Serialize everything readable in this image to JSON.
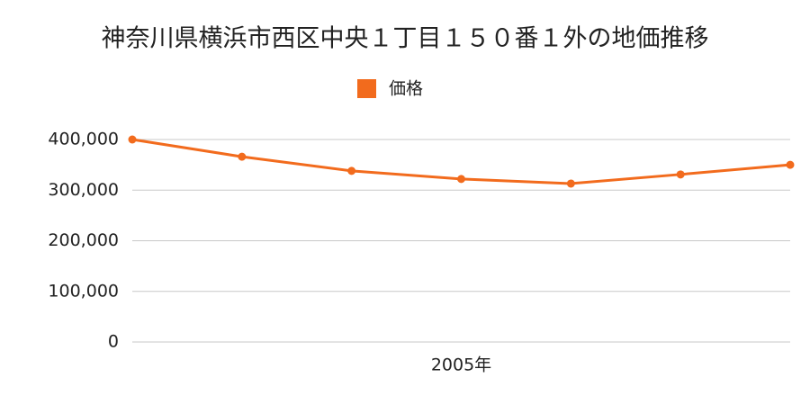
{
  "chart_data": {
    "type": "line",
    "title": "神奈川県横浜市西区中央１丁目１５０番１外の地価推移",
    "categories": [
      null,
      null,
      null,
      "2005年",
      null,
      null,
      null
    ],
    "series": [
      {
        "name": "価格",
        "color": "#f26b1d",
        "values": [
          400000,
          366000,
          338000,
          322000,
          313000,
          331000,
          350000
        ]
      }
    ],
    "ylim": [
      0,
      400000
    ],
    "yticks": [
      {
        "value": 0,
        "label": "0"
      },
      {
        "value": 100000,
        "label": "100,000"
      },
      {
        "value": 200000,
        "label": "200,000"
      },
      {
        "value": 300000,
        "label": "300,000"
      },
      {
        "value": 400000,
        "label": "400,000"
      }
    ],
    "grid": true,
    "legend": "top"
  }
}
